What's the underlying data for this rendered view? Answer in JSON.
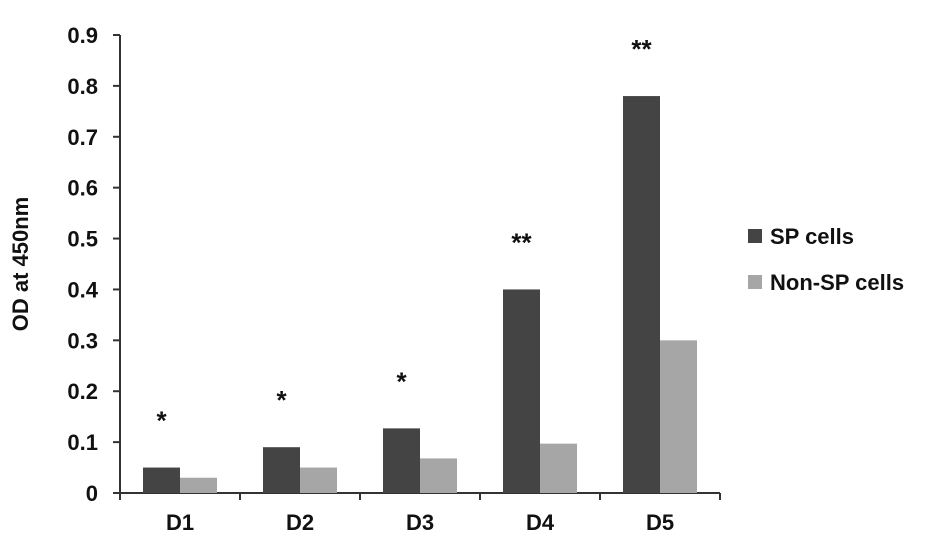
{
  "chart_data": {
    "type": "bar",
    "title": "",
    "xlabel": "",
    "ylabel": "OD at 450nm",
    "ylim": [
      0,
      0.9
    ],
    "yticks": [
      "0",
      "0.1",
      "0.2",
      "0.3",
      "0.4",
      "0.5",
      "0.6",
      "0.7",
      "0.8",
      "0.9"
    ],
    "grid": false,
    "legend_position": "right",
    "categories": [
      "D1",
      "D2",
      "D3",
      "D4",
      "D5"
    ],
    "series": [
      {
        "name": "SP cells",
        "values": [
          0.05,
          0.09,
          0.127,
          0.4,
          0.78
        ],
        "color": "#444444"
      },
      {
        "name": "Non-SP cells",
        "values": [
          0.03,
          0.05,
          0.068,
          0.097,
          0.3
        ],
        "color": "#a6a6a6"
      }
    ],
    "annotations": [
      "*",
      "*",
      "*",
      "**",
      "**"
    ]
  }
}
